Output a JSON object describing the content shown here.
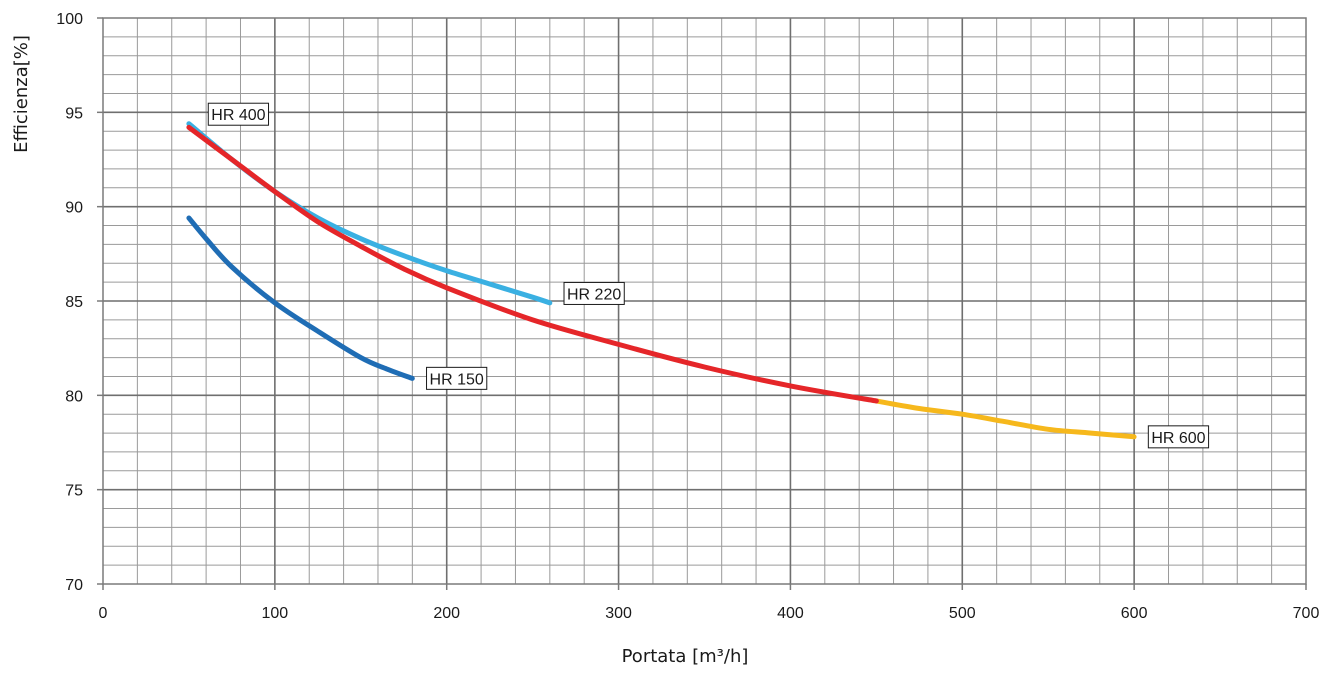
{
  "chart_data": {
    "type": "line",
    "xlabel": "Portata [m³/h]",
    "ylabel": "Efficienza[%]",
    "xlim": [
      0,
      700
    ],
    "ylim": [
      70,
      100
    ],
    "x_ticks": [
      "0",
      "100",
      "200",
      "300",
      "400",
      "500",
      "600",
      "700"
    ],
    "y_ticks": [
      "70",
      "75",
      "80",
      "85",
      "90",
      "95",
      "100"
    ],
    "grid": true,
    "series": [
      {
        "name": "HR 150",
        "color": "#1f6db5",
        "points": [
          [
            50,
            89.4
          ],
          [
            60,
            88.3
          ],
          [
            75,
            86.8
          ],
          [
            100,
            84.9
          ],
          [
            125,
            83.4
          ],
          [
            150,
            82.0
          ],
          [
            165,
            81.4
          ],
          [
            180,
            80.9
          ]
        ]
      },
      {
        "name": "HR 220",
        "color": "#3ab0e2",
        "points": [
          [
            50,
            94.4
          ],
          [
            75,
            92.5
          ],
          [
            100,
            90.8
          ],
          [
            125,
            89.4
          ],
          [
            150,
            88.3
          ],
          [
            175,
            87.4
          ],
          [
            200,
            86.6
          ],
          [
            225,
            85.9
          ],
          [
            250,
            85.2
          ],
          [
            260,
            84.9
          ]
        ]
      },
      {
        "name": "HR 400",
        "color": "#e52629",
        "points": [
          [
            50,
            94.2
          ],
          [
            75,
            92.5
          ],
          [
            100,
            90.8
          ],
          [
            125,
            89.2
          ],
          [
            150,
            87.9
          ],
          [
            175,
            86.7
          ],
          [
            200,
            85.7
          ],
          [
            250,
            84.0
          ],
          [
            300,
            82.7
          ],
          [
            350,
            81.5
          ],
          [
            400,
            80.5
          ],
          [
            450,
            79.7
          ]
        ]
      },
      {
        "name": "HR 600",
        "color": "#f6b81c",
        "points": [
          [
            450,
            79.7
          ],
          [
            475,
            79.3
          ],
          [
            500,
            79.0
          ],
          [
            525,
            78.6
          ],
          [
            550,
            78.2
          ],
          [
            575,
            78.0
          ],
          [
            600,
            77.8
          ]
        ]
      }
    ],
    "annotations": [
      {
        "text": "HR 400",
        "x": 63,
        "y": 94.9
      },
      {
        "text": "HR 220",
        "x": 270,
        "y": 85.4
      },
      {
        "text": "HR 150",
        "x": 190,
        "y": 80.9
      },
      {
        "text": "HR 600",
        "x": 610,
        "y": 77.8
      }
    ]
  }
}
